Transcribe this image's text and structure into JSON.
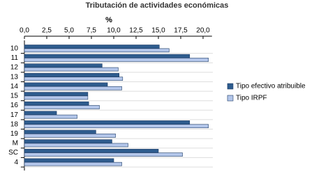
{
  "chart_data": {
    "type": "hbar",
    "title": "Tributación de actividades económicas",
    "x_label": "%",
    "categories": [
      "10",
      "11",
      "12",
      "13",
      "14",
      "15",
      "16",
      "17",
      "18",
      "19",
      "M",
      "SC",
      "4"
    ],
    "series": [
      {
        "name": "Tipo efectivo atribuible",
        "color": "#2e5c8e",
        "values": [
          15.1,
          18.5,
          8.7,
          10.6,
          9.3,
          7.1,
          7.2,
          3.6,
          18.5,
          8.0,
          9.8,
          15.0,
          10.0
        ]
      },
      {
        "name": "Tipo IRPF",
        "color": "#b3c6ea",
        "values": [
          16.2,
          20.6,
          10.5,
          11.0,
          10.9,
          7.1,
          8.4,
          5.9,
          20.6,
          10.2,
          11.6,
          17.7,
          10.9
        ]
      }
    ],
    "xlim": [
      0,
      21
    ],
    "xticks": [
      {
        "value": 0,
        "label": "0,0"
      },
      {
        "value": 2.5,
        "label": "2,5"
      },
      {
        "value": 5,
        "label": "5,0"
      },
      {
        "value": 7.5,
        "label": "7,5"
      },
      {
        "value": 10,
        "label": "10,0"
      },
      {
        "value": 12.5,
        "label": "12,5"
      },
      {
        "value": 15,
        "label": "15,0"
      },
      {
        "value": 17.5,
        "label": "17,5"
      },
      {
        "value": 20,
        "label": "20,0"
      }
    ],
    "legend": "right"
  }
}
